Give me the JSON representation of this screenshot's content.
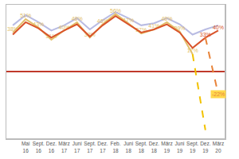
{
  "chart_data": {
    "type": "line",
    "categories": [
      null,
      "Mai 16",
      "Sept. 16",
      "Dez. 16",
      "März 17",
      "Juni 17",
      "Sept. 17",
      "Dez. 17",
      "Feb. 18",
      "Juni 18",
      "Sept. 18",
      "Dez. 18",
      "März 19",
      "Juni 19",
      "Sept. 19",
      "Dez. 19",
      "März 20"
    ],
    "ylim": [
      -65,
      65
    ],
    "yticks": [
      0
    ],
    "grid": true,
    "tick_labels": "x",
    "data_labels": true,
    "series": [
      {
        "color": "#b9bce3",
        "line_style": "solid",
        "values": [
          45,
          55,
          48,
          40,
          45,
          52,
          41,
          50,
          58,
          52,
          45,
          47,
          52,
          46,
          36,
          41,
          45
        ]
      },
      {
        "color": "#e3bf6a",
        "line_style": "solid",
        "values": [
          38,
          51,
          43,
          31,
          40,
          48,
          33,
          46,
          56,
          47,
          37,
          41,
          48,
          39,
          17,
          null,
          null
        ],
        "value_labels": [
          "38%",
          "51%",
          "43%",
          "31%",
          "40%",
          "48%",
          "33%",
          "46%",
          "56%",
          "47%",
          "37%",
          "41%",
          "48%",
          "39%",
          "17%",
          null,
          null
        ]
      },
      {
        "color": "#d9542b",
        "line_style": "solid",
        "values": [
          36,
          48,
          42,
          33,
          40,
          46,
          34,
          45,
          54,
          46,
          38,
          41,
          46,
          38,
          23,
          33,
          40
        ],
        "value_labels": [
          null,
          null,
          null,
          null,
          null,
          null,
          null,
          null,
          null,
          null,
          null,
          null,
          null,
          null,
          null,
          "33%",
          "40%"
        ]
      },
      {
        "color": "#f2c200",
        "line_style": "dashed",
        "values": [
          null,
          null,
          null,
          null,
          null,
          null,
          null,
          null,
          null,
          null,
          null,
          null,
          null,
          null,
          17,
          -57,
          null
        ]
      },
      {
        "color": "#e8843a",
        "line_style": "dashed",
        "values": [
          null,
          null,
          null,
          null,
          null,
          null,
          null,
          null,
          null,
          null,
          null,
          null,
          null,
          null,
          null,
          33,
          -22
        ],
        "value_labels": [
          null,
          null,
          null,
          null,
          null,
          null,
          null,
          null,
          null,
          null,
          null,
          null,
          null,
          null,
          null,
          null,
          "-22%"
        ]
      }
    ]
  }
}
